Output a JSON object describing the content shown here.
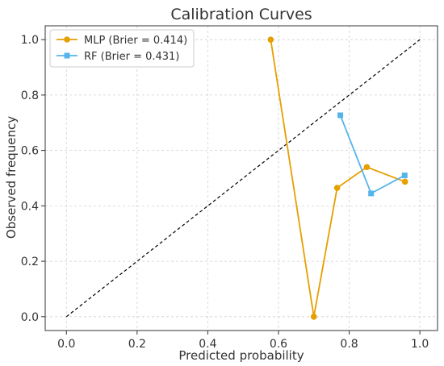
{
  "chart_data": {
    "type": "line",
    "title": "Calibration Curves",
    "xlabel": "Predicted probability",
    "ylabel": "Observed frequency",
    "xlim": [
      -0.06,
      1.05
    ],
    "ylim": [
      -0.05,
      1.05
    ],
    "xticks": [
      0.0,
      0.2,
      0.4,
      0.6,
      0.8,
      1.0
    ],
    "yticks": [
      0.0,
      0.2,
      0.4,
      0.6,
      0.8,
      1.0
    ],
    "xtick_labels": [
      "0.0",
      "0.2",
      "0.4",
      "0.6",
      "0.8",
      "1.0"
    ],
    "ytick_labels": [
      "0.0",
      "0.2",
      "0.4",
      "0.6",
      "0.8",
      "1.0"
    ],
    "grid": true,
    "legend_position": "top-left",
    "reference_line": {
      "x": [
        0,
        1
      ],
      "y": [
        0,
        1
      ],
      "color": "#000000",
      "style": "dashed"
    },
    "series": [
      {
        "name": "MLP (Brier = 0.414)",
        "color": "#E69F00",
        "marker": "circle",
        "x": [
          0.578,
          0.7,
          0.766,
          0.85,
          0.958
        ],
        "y": [
          1.0,
          0.0,
          0.465,
          0.54,
          0.487
        ]
      },
      {
        "name": "RF (Brier = 0.431)",
        "color": "#56B4E9",
        "marker": "square",
        "x": [
          0.775,
          0.862,
          0.957
        ],
        "y": [
          0.727,
          0.445,
          0.51
        ]
      }
    ]
  }
}
